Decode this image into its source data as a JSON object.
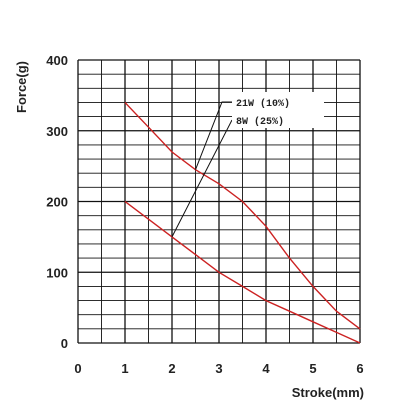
{
  "chart_data": {
    "type": "line",
    "xlabel": "Stroke(mm)",
    "ylabel": "Force(g)",
    "xlim": [
      0,
      6
    ],
    "ylim": [
      0,
      400
    ],
    "x_ticks": [
      "0",
      "1",
      "2",
      "3",
      "4",
      "5",
      "6"
    ],
    "y_ticks": [
      "0",
      "100",
      "200",
      "300",
      "400"
    ],
    "grid": true,
    "x_minor_step": 0.5,
    "y_minor_step": 20,
    "legend_position": "top-right",
    "line_color": "#cc2222",
    "grid_color": "#111111",
    "series": [
      {
        "name": "21W  (10%)",
        "x": [
          1,
          1.5,
          2,
          2.5,
          3,
          3.5,
          4,
          4.5,
          5,
          5.5,
          6
        ],
        "y": [
          340,
          305,
          270,
          245,
          225,
          200,
          165,
          120,
          80,
          45,
          20
        ]
      },
      {
        "name": "8W   (25%)",
        "x": [
          1,
          1.5,
          2,
          2.5,
          3,
          3.5,
          4,
          4.5,
          5,
          5.5,
          6
        ],
        "y": [
          200,
          175,
          150,
          125,
          100,
          80,
          60,
          45,
          30,
          15,
          0
        ]
      }
    ],
    "callouts": [
      {
        "series": 0,
        "at_x": 2.5
      },
      {
        "series": 1,
        "at_x": 2
      }
    ]
  }
}
